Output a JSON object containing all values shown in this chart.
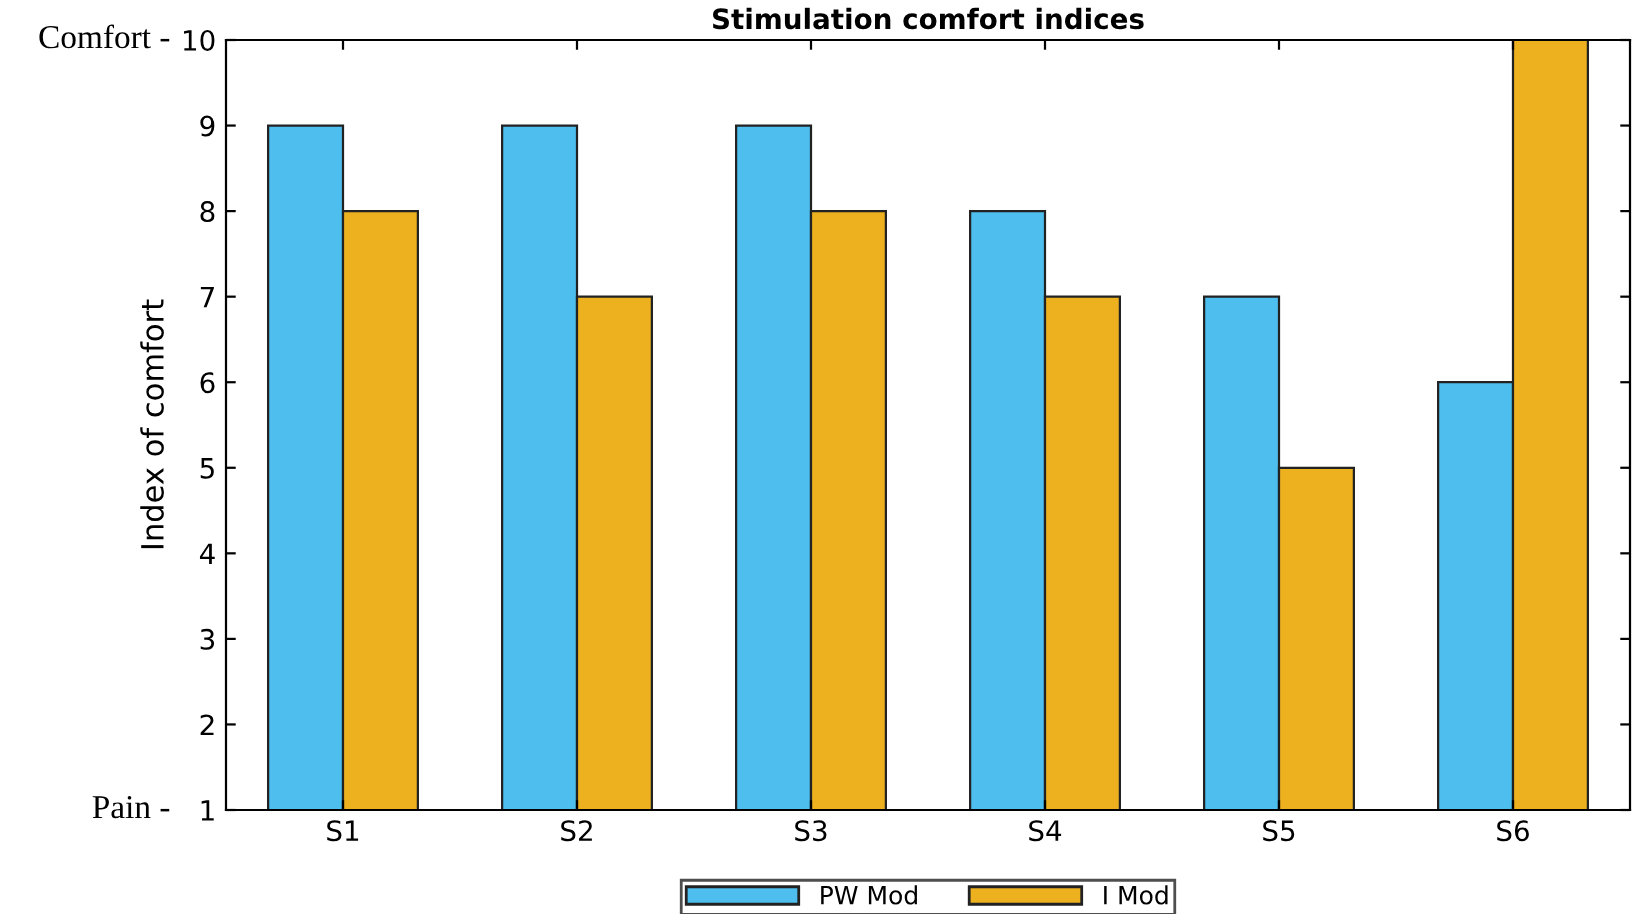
{
  "chart_data": {
    "type": "bar",
    "title": "Stimulation comfort indices",
    "ylabel": "Index of comfort",
    "categories": [
      "S1",
      "S2",
      "S3",
      "S4",
      "S5",
      "S6"
    ],
    "series": [
      {
        "name": "PW Mod",
        "color": "#4dbeee",
        "values": [
          9,
          9,
          9,
          8,
          7,
          6
        ]
      },
      {
        "name": "I Mod",
        "color": "#edb120",
        "values": [
          8,
          7,
          8,
          7,
          5,
          10
        ]
      }
    ],
    "ylim": [
      1,
      10
    ],
    "yticks": [
      1,
      2,
      3,
      4,
      5,
      6,
      7,
      8,
      9,
      10
    ],
    "annotations": [
      "Comfort -",
      "Pain -"
    ],
    "grid": false,
    "legend": "bottom"
  }
}
